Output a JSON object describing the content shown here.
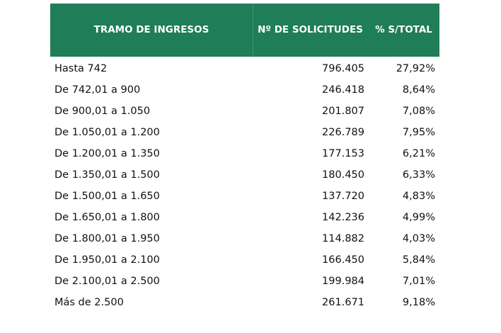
{
  "table": {
    "headers": [
      "TRAMO DE INGRESOS",
      "Nº DE SOLICITUDES",
      "% S/TOTAL"
    ],
    "rows": [
      [
        "Hasta 742",
        "796.405",
        "27,92%"
      ],
      [
        "De 742,01 a 900",
        "246.418",
        "8,64%"
      ],
      [
        "De 900,01 a 1.050",
        "201.807",
        "7,08%"
      ],
      [
        "De 1.050,01 a 1.200",
        "226.789",
        "7,95%"
      ],
      [
        "De 1.200,01 a 1.350",
        "177.153",
        "6,21%"
      ],
      [
        "De 1.350,01 a 1.500",
        "180.450",
        "6,33%"
      ],
      [
        "De 1.500,01 a 1.650",
        "137.720",
        "4,83%"
      ],
      [
        "De 1.650,01 a 1.800",
        "142.236",
        "4,99%"
      ],
      [
        "De 1.800,01 a 1.950",
        "114.882",
        "4,03%"
      ],
      [
        "De 1.950,01 a 2.100",
        "166.450",
        "5,84%"
      ],
      [
        "De 2.100,01 a 2.500",
        "199.984",
        "7,01%"
      ],
      [
        "Más de 2.500",
        "261.671",
        "9,18%"
      ]
    ]
  }
}
